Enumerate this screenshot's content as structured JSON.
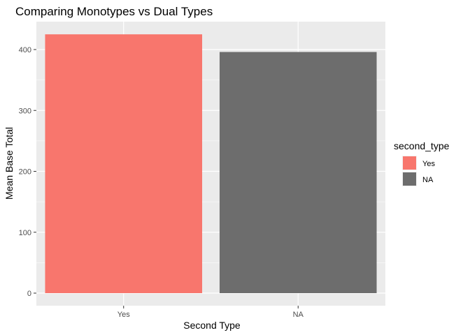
{
  "chart_data": {
    "type": "bar",
    "title": "Comparing Monotypes vs Dual Types",
    "xlabel": "Second Type",
    "ylabel": "Mean Base Total",
    "categories": [
      "Yes",
      "NA"
    ],
    "values": [
      425,
      396
    ],
    "ylim": [
      0,
      445
    ],
    "y_ticks": [
      0,
      100,
      200,
      300,
      400
    ],
    "grid": true,
    "colors": [
      "#F8766D",
      "#6D6D6D"
    ],
    "panel_background": "#EBEBEB",
    "legend": {
      "title": "second_type",
      "placement": "right",
      "entries": [
        {
          "label": "Yes",
          "color": "#F8766D"
        },
        {
          "label": "NA",
          "color": "#6D6D6D"
        }
      ]
    }
  }
}
